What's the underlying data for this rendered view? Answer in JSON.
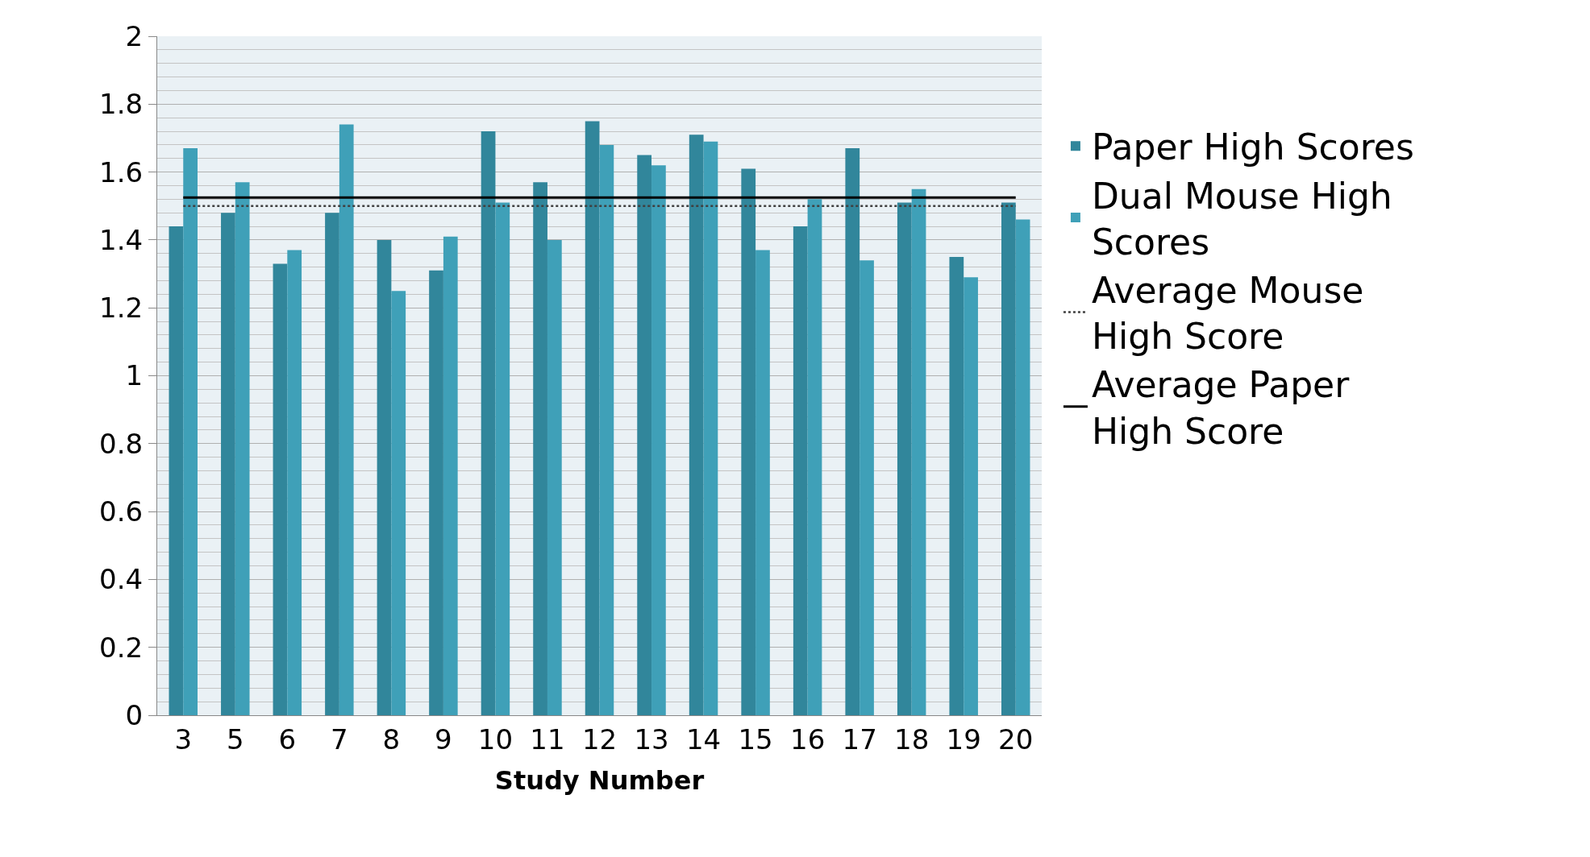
{
  "chart_data": {
    "type": "bar",
    "xlabel": "Study Number",
    "categories": [
      "3",
      "5",
      "6",
      "7",
      "8",
      "9",
      "10",
      "11",
      "12",
      "13",
      "14",
      "15",
      "16",
      "17",
      "18",
      "19",
      "20"
    ],
    "series": [
      {
        "name": "Paper High Scores",
        "color": "#31869b",
        "values": [
          1.44,
          1.48,
          1.33,
          1.48,
          1.4,
          1.31,
          1.72,
          1.57,
          1.75,
          1.65,
          1.71,
          1.61,
          1.44,
          1.67,
          1.51,
          1.35,
          1.51
        ]
      },
      {
        "name": "Dual Mouse High Scores",
        "color": "#3fa0b8",
        "values": [
          1.67,
          1.57,
          1.37,
          1.74,
          1.25,
          1.41,
          1.51,
          1.4,
          1.68,
          1.62,
          1.69,
          1.37,
          1.52,
          1.34,
          1.55,
          1.29,
          1.46
        ]
      },
      {
        "name": "Average Mouse High Score",
        "type": "line",
        "line_style": "dotted",
        "color": "#404040",
        "values": [
          1.5,
          1.5,
          1.5,
          1.5,
          1.5,
          1.5,
          1.5,
          1.5,
          1.5,
          1.5,
          1.5,
          1.5,
          1.5,
          1.5,
          1.5,
          1.5,
          1.5
        ]
      },
      {
        "name": "Average Paper High Score",
        "type": "line",
        "line_style": "solid",
        "color": "#000000",
        "values": [
          1.525,
          1.525,
          1.525,
          1.525,
          1.525,
          1.525,
          1.525,
          1.525,
          1.525,
          1.525,
          1.525,
          1.525,
          1.525,
          1.525,
          1.525,
          1.525,
          1.525
        ]
      }
    ],
    "ylim": [
      0,
      2
    ],
    "yticks": [
      0,
      0.2,
      0.4,
      0.6,
      0.8,
      1,
      1.2,
      1.4,
      1.6,
      1.8,
      2
    ],
    "grid": "y",
    "legend": "right"
  }
}
